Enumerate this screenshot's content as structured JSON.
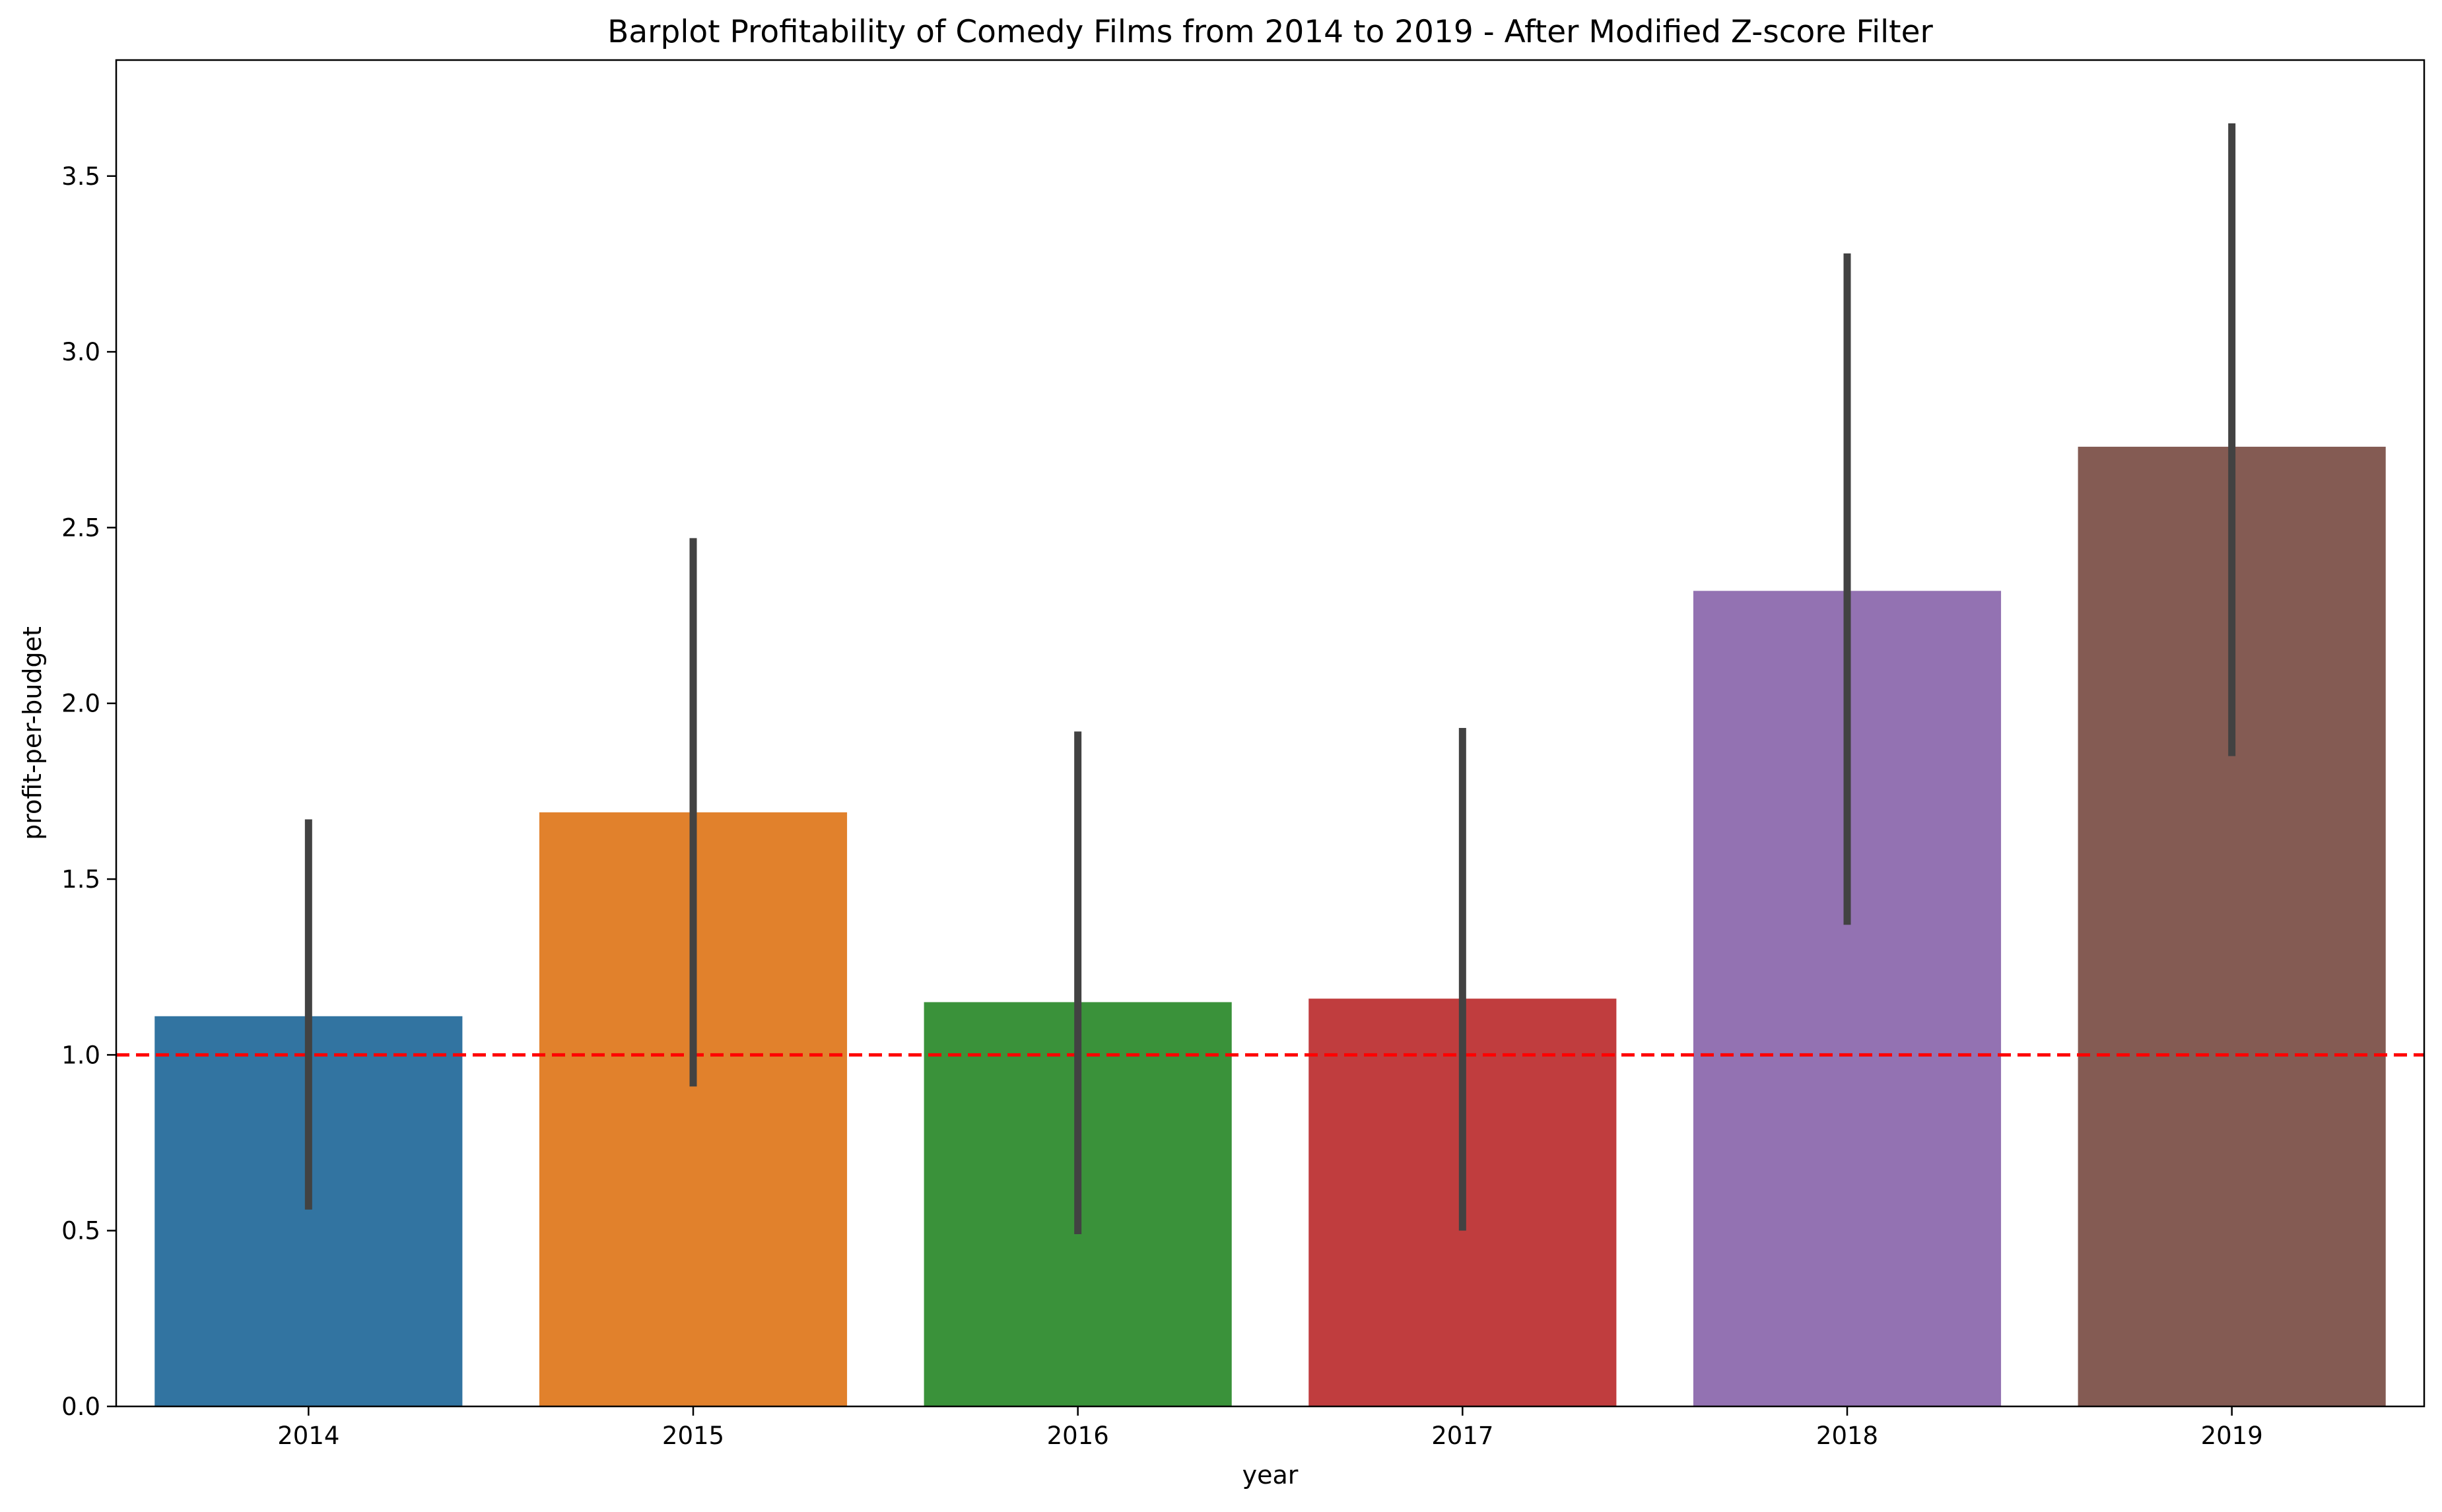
{
  "chart_data": {
    "type": "bar",
    "title": "Barplot Profitability of Comedy Films from 2014 to 2019 - After Modified Z-score Filter",
    "xlabel": "year",
    "ylabel": "profit-per-budget",
    "categories": [
      "2014",
      "2015",
      "2016",
      "2017",
      "2018",
      "2019"
    ],
    "values": [
      1.11,
      1.69,
      1.15,
      1.16,
      2.32,
      2.73
    ],
    "error_bars": [
      {
        "low": 0.56,
        "high": 1.67
      },
      {
        "low": 0.91,
        "high": 2.47
      },
      {
        "low": 0.49,
        "high": 1.92
      },
      {
        "low": 0.5,
        "high": 1.93
      },
      {
        "low": 1.37,
        "high": 3.28
      },
      {
        "low": 1.85,
        "high": 3.65
      }
    ],
    "bar_colors": [
      "#3274a1",
      "#e1812c",
      "#3a923a",
      "#c03d3e",
      "#9372b2",
      "#845b53"
    ],
    "error_bar_color": "#424242",
    "reference_line": {
      "y": 1.0,
      "color": "#ff0000",
      "style": "dashed"
    },
    "ylim": [
      0.0,
      3.83
    ],
    "yticks": [
      0.0,
      0.5,
      1.0,
      1.5,
      2.0,
      2.5,
      3.0,
      3.5
    ],
    "ytick_labels": [
      "0.0",
      "0.5",
      "1.0",
      "1.5",
      "2.0",
      "2.5",
      "3.0",
      "3.5"
    ],
    "grid": false,
    "legend": false
  }
}
